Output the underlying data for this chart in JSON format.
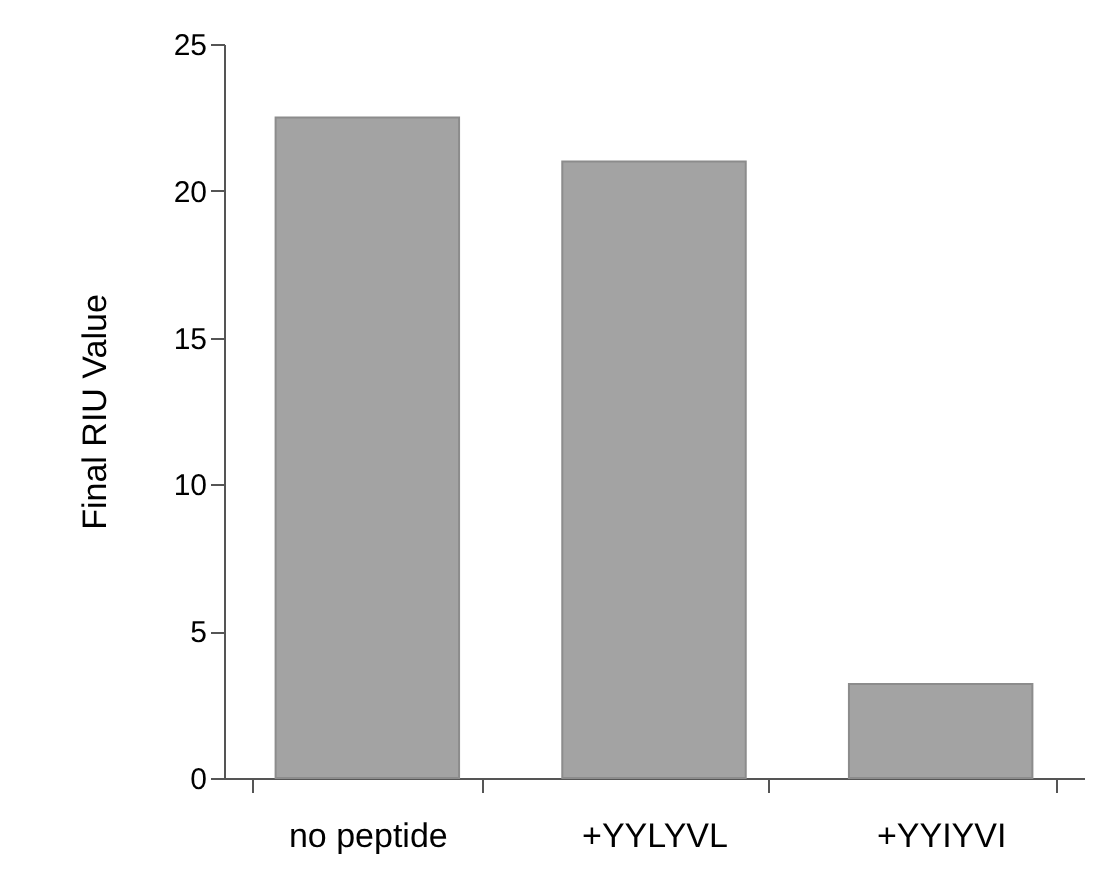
{
  "chart_data": {
    "type": "bar",
    "ylabel": "Final RIU Value",
    "categories": [
      "no peptide",
      "+YYLYVL",
      "+YYIYVI"
    ],
    "values": [
      22.5,
      21.0,
      3.2
    ],
    "color": "#a3a3a3",
    "ylim": [
      0,
      25
    ],
    "yticks": [
      0,
      5,
      10,
      15,
      20,
      25
    ],
    "grid": false
  }
}
